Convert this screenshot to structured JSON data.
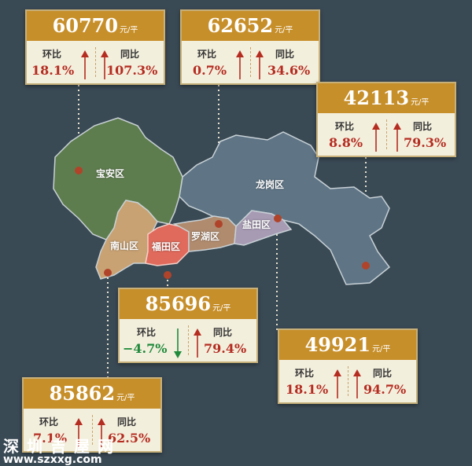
{
  "unit": "元/平",
  "labels": {
    "mom": "环比",
    "yoy": "同比"
  },
  "colors": {
    "up": "#b52c21",
    "down": "#1f8a3b",
    "header": "#c78f2a",
    "card": "#f3efdd"
  },
  "districts": [
    {
      "name": "宝安区"
    },
    {
      "name": "龙岗区"
    },
    {
      "name": "南山区"
    },
    {
      "name": "福田区"
    },
    {
      "name": "罗湖区"
    },
    {
      "name": "盐田区"
    }
  ],
  "cards": [
    {
      "id": "baoan",
      "price": "60770",
      "mom": "18.1%",
      "mom_dir": "up",
      "yoy": "107.3%",
      "yoy_dir": "up"
    },
    {
      "id": "luohu",
      "price": "62652",
      "mom": "0.7%",
      "mom_dir": "up",
      "yoy": "34.6%",
      "yoy_dir": "up"
    },
    {
      "id": "longgang",
      "price": "42113",
      "mom": "8.8%",
      "mom_dir": "up",
      "yoy": "79.3%",
      "yoy_dir": "up"
    },
    {
      "id": "futian",
      "price": "85696",
      "mom": "−4.7%",
      "mom_dir": "down",
      "yoy": "79.4%",
      "yoy_dir": "up"
    },
    {
      "id": "yantian",
      "price": "49921",
      "mom": "18.1%",
      "mom_dir": "up",
      "yoy": "94.7%",
      "yoy_dir": "up"
    },
    {
      "id": "nanshan",
      "price": "85862",
      "mom": "7.1%",
      "mom_dir": "up",
      "yoy": "62.5%",
      "yoy_dir": "up"
    }
  ],
  "watermark": {
    "line1": "深圳吉屋网",
    "line2": "www.szxxg.com"
  }
}
